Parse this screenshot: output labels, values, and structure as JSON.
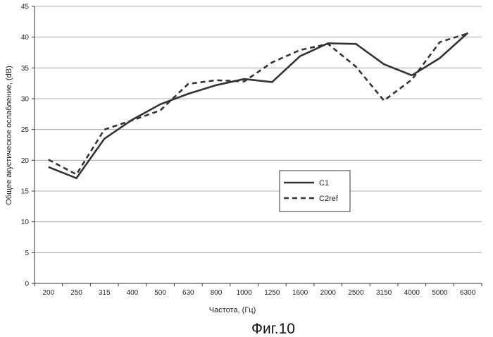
{
  "chart_data": {
    "type": "line",
    "title": "",
    "xlabel": "Частота, (Гц)",
    "ylabel": "Общее акустическое ослабление, (dB)",
    "ylim": [
      0,
      45
    ],
    "yticks": [
      0,
      5,
      10,
      15,
      20,
      25,
      30,
      35,
      40,
      45
    ],
    "grid": true,
    "categories": [
      "200",
      "250",
      "315",
      "400",
      "500",
      "630",
      "800",
      "1000",
      "1250",
      "1600",
      "2000",
      "2500",
      "3150",
      "4000",
      "5000",
      "6300"
    ],
    "series": [
      {
        "name": "C1",
        "style": "solid",
        "color": "#333333",
        "values": [
          18.9,
          17.1,
          23.5,
          26.6,
          29.1,
          30.8,
          32.2,
          33.2,
          32.7,
          36.9,
          39.0,
          38.9,
          35.6,
          33.8,
          36.6,
          40.7
        ]
      },
      {
        "name": "C2ref",
        "style": "dashed",
        "color": "#333333",
        "values": [
          20.1,
          17.7,
          25.0,
          26.5,
          28.1,
          32.4,
          33.0,
          32.8,
          35.9,
          37.9,
          38.9,
          35.2,
          29.7,
          33.1,
          39.2,
          40.6
        ]
      }
    ],
    "legend": {
      "position": "center-right",
      "entries": [
        "C1",
        "C2ref"
      ]
    }
  },
  "caption": "Фиг.10"
}
